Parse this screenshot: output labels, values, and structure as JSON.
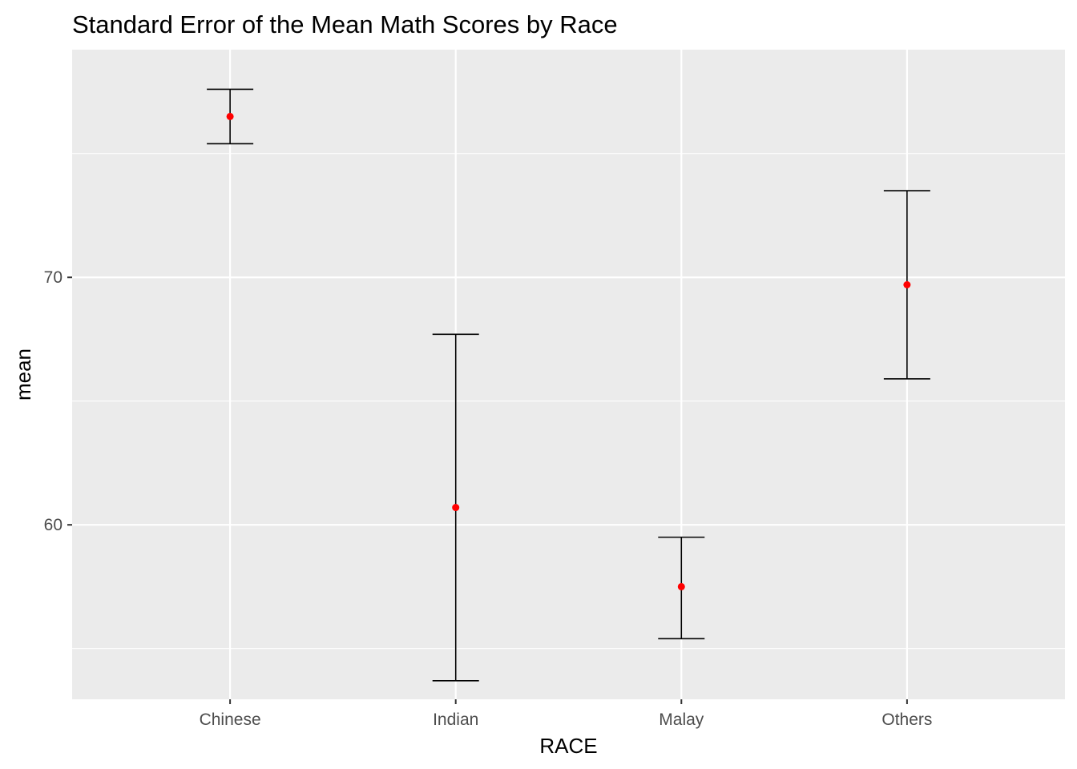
{
  "chart_data": {
    "type": "errorbar",
    "title": "Standard Error of the Mean Math Scores by Race",
    "xlabel": "RACE",
    "ylabel": "mean",
    "categories": [
      "Chinese",
      "Indian",
      "Malay",
      "Others"
    ],
    "series": [
      {
        "mean": [
          76.5,
          60.7,
          57.5,
          69.7
        ],
        "lower": [
          75.4,
          53.7,
          55.4,
          65.9
        ],
        "upper": [
          77.6,
          67.7,
          59.5,
          73.5
        ]
      }
    ],
    "ylim": [
      52.95,
      79.2
    ],
    "yticks": [
      60,
      70
    ],
    "grid": true,
    "point_color": "#ff0000",
    "errorbar_color": "#000000",
    "panel_background": "#ebebeb",
    "grid_color": "#ffffff"
  }
}
